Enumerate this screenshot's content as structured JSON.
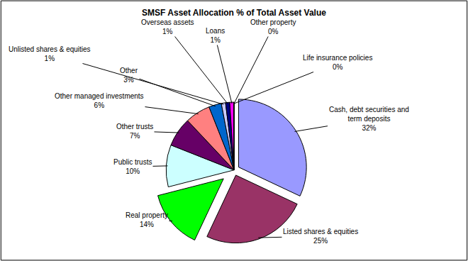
{
  "chart_data": {
    "type": "pie",
    "title": "SMSF Asset Allocation % of Total Asset Value",
    "categories": [
      "Cash, debt securities and term deposits",
      "Listed shares & equities",
      "Real property",
      "Public trusts",
      "Other trusts",
      "Other managed investments",
      "Other",
      "Unlisted shares & equities",
      "Overseas assets",
      "Loans",
      "Other property",
      "Life insurance policies"
    ],
    "values": [
      32,
      25,
      14,
      10,
      7,
      6,
      3,
      1,
      1,
      1,
      0,
      0
    ],
    "value_labels": [
      "32%",
      "25%",
      "14%",
      "10%",
      "7%",
      "6%",
      "3%",
      "1%",
      "1%",
      "1%",
      "0%",
      "0%"
    ],
    "colors": [
      "#9999ff",
      "#993366",
      "#00ff00",
      "#ccffff",
      "#660066",
      "#ff8080",
      "#0066cc",
      "#ccccff",
      "#000080",
      "#ff00ff",
      "#ffff00",
      "#00ffff"
    ],
    "data_labels": true
  }
}
